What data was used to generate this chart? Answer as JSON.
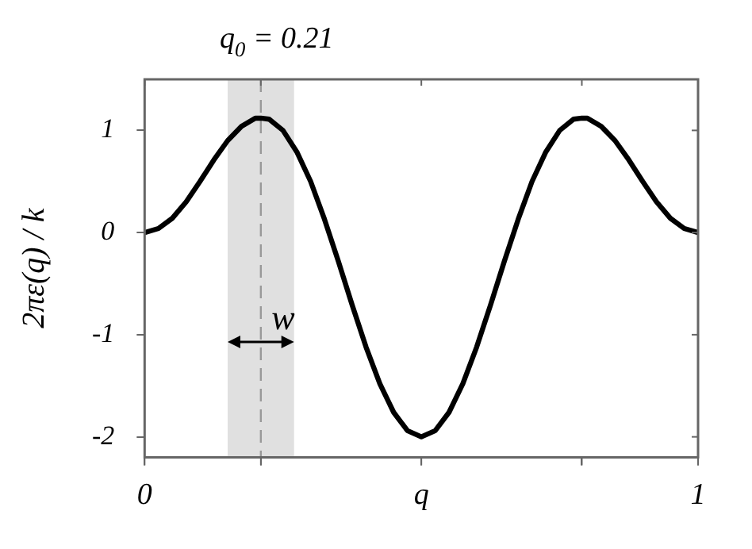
{
  "chart_data": {
    "type": "line",
    "ylabel": "2πε(q) / k",
    "x": [
      0,
      0.025,
      0.05,
      0.075,
      0.1,
      0.125,
      0.15,
      0.175,
      0.2,
      0.21,
      0.225,
      0.25,
      0.275,
      0.3,
      0.325,
      0.35,
      0.375,
      0.4,
      0.425,
      0.45,
      0.475,
      0.5,
      0.525,
      0.55,
      0.575,
      0.6,
      0.625,
      0.65,
      0.675,
      0.7,
      0.725,
      0.75,
      0.775,
      0.79,
      0.8,
      0.825,
      0.85,
      0.875,
      0.9,
      0.925,
      0.95,
      0.975,
      1
    ],
    "series": [
      {
        "color": "#000000",
        "values": [
          0,
          0.04,
          0.14,
          0.3,
          0.5,
          0.71,
          0.9,
          1.04,
          1.12,
          1.12,
          1.11,
          1,
          0.79,
          0.5,
          0.13,
          -0.28,
          -0.71,
          -1.12,
          -1.48,
          -1.76,
          -1.94,
          -2,
          -1.94,
          -1.76,
          -1.48,
          -1.12,
          -0.71,
          -0.28,
          0.13,
          0.5,
          0.79,
          1,
          1.11,
          1.12,
          1.12,
          1.04,
          0.9,
          0.71,
          0.5,
          0.3,
          0.14,
          0.04,
          0
        ]
      }
    ],
    "xlim": [
      0,
      1
    ],
    "xticks": [
      0,
      {
        "value": 0.21,
        "label": null
      },
      {
        "value": 0.5,
        "label": "q"
      },
      {
        "value": 0.79,
        "label": null
      },
      1
    ],
    "ylim": [
      -2.2,
      1.5
    ],
    "yticks": [
      -2,
      -1,
      0,
      1
    ],
    "ref_lines": [
      {
        "axis": "x",
        "value": 0.21,
        "label": "q$_{0}$ = 0.21",
        "color": "#999999",
        "line_style": "dashed"
      }
    ],
    "bands": [
      {
        "axis": "x",
        "from": 0.15,
        "to": 0.27,
        "label": "w",
        "color": "#e0e0e0"
      }
    ],
    "grid": false,
    "legend": false,
    "marker": "none",
    "line_style": "solid"
  }
}
